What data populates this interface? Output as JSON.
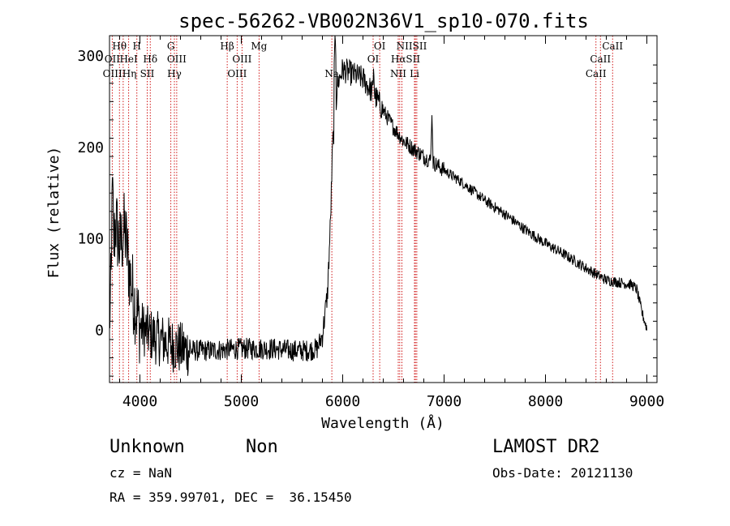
{
  "chart_data": {
    "type": "line",
    "title": "spec-56262-VB002N36V1_sp10-070.fits",
    "xlabel": "Wavelength (Å)",
    "ylabel": "Flux (relative)",
    "xlim": [
      3700,
      9100
    ],
    "ylim": [
      -57,
      322
    ],
    "xticks": [
      {
        "value": 4000,
        "label": "4000"
      },
      {
        "value": 5000,
        "label": "5000"
      },
      {
        "value": 6000,
        "label": "6000"
      },
      {
        "value": 7000,
        "label": "7000"
      },
      {
        "value": 8000,
        "label": "8000"
      },
      {
        "value": 9000,
        "label": "9000"
      }
    ],
    "yticks": [
      {
        "value": 0,
        "label": "0"
      },
      {
        "value": 100,
        "label": "100"
      },
      {
        "value": 200,
        "label": "200"
      },
      {
        "value": 300,
        "label": "300"
      }
    ],
    "spectrum_envelope": [
      [
        3700,
        10
      ],
      [
        3720,
        60
      ],
      [
        3760,
        120
      ],
      [
        3800,
        90
      ],
      [
        3850,
        110
      ],
      [
        3900,
        60
      ],
      [
        3950,
        30
      ],
      [
        4000,
        5
      ],
      [
        4100,
        -5
      ],
      [
        4200,
        -10
      ],
      [
        4300,
        -15
      ],
      [
        4400,
        -20
      ],
      [
        4500,
        -22
      ],
      [
        4700,
        -22
      ],
      [
        5000,
        -20
      ],
      [
        5300,
        -20
      ],
      [
        5500,
        -22
      ],
      [
        5650,
        -22
      ],
      [
        5750,
        -20
      ],
      [
        5800,
        -5
      ],
      [
        5850,
        40
      ],
      [
        5880,
        120
      ],
      [
        5900,
        200
      ],
      [
        5950,
        270
      ],
      [
        6000,
        285
      ],
      [
        6100,
        280
      ],
      [
        6200,
        275
      ],
      [
        6280,
        262
      ],
      [
        6300,
        260
      ],
      [
        6400,
        240
      ],
      [
        6500,
        222
      ],
      [
        6600,
        207
      ],
      [
        6700,
        198
      ],
      [
        6800,
        190
      ],
      [
        6900,
        183
      ],
      [
        7000,
        175
      ],
      [
        7200,
        160
      ],
      [
        7400,
        142
      ],
      [
        7600,
        127
      ],
      [
        7800,
        110
      ],
      [
        8000,
        95
      ],
      [
        8200,
        82
      ],
      [
        8400,
        68
      ],
      [
        8600,
        55
      ],
      [
        8750,
        52
      ],
      [
        8850,
        50
      ],
      [
        8900,
        45
      ],
      [
        8950,
        20
      ],
      [
        9000,
        2
      ]
    ],
    "spectrum_spikes": [
      [
        6880,
        235
      ],
      [
        6305,
        290
      ],
      [
        5925,
        328
      ],
      [
        3730,
        175
      ]
    ],
    "lines": [
      {
        "label": "Hθ",
        "wavelength": 3798,
        "row": 0
      },
      {
        "label": "H",
        "wavelength": 3970,
        "row": 0
      },
      {
        "label": "G",
        "wavelength": 4305,
        "row": 0
      },
      {
        "label": "Hβ",
        "wavelength": 4861,
        "row": 0
      },
      {
        "label": "Mg",
        "wavelength": 5175,
        "row": 0
      },
      {
        "label": "OI",
        "wavelength": 6365,
        "row": 0
      },
      {
        "label": "NIISII",
        "wavelength": 6680,
        "row": 0
      },
      {
        "label": "CaII",
        "wavelength": 8662,
        "row": 0
      },
      {
        "label": "OII",
        "wavelength": 3727,
        "row": 1
      },
      {
        "label": "HeI",
        "wavelength": 3889,
        "row": 1
      },
      {
        "label": "Hδ",
        "wavelength": 4102,
        "row": 1
      },
      {
        "label": "OIII",
        "wavelength": 4363,
        "row": 1
      },
      {
        "label": "OIII",
        "wavelength": 5007,
        "row": 1
      },
      {
        "label": "OI",
        "wavelength": 6300,
        "row": 1
      },
      {
        "label": "HαSII",
        "wavelength": 6620,
        "row": 1
      },
      {
        "label": "CaII",
        "wavelength": 8542,
        "row": 1
      },
      {
        "label": "OIIIHη",
        "wavelength": 3800,
        "row": 2
      },
      {
        "label": "SII",
        "wavelength": 4072,
        "row": 2
      },
      {
        "label": "Hγ",
        "wavelength": 4340,
        "row": 2
      },
      {
        "label": "OIII",
        "wavelength": 4959,
        "row": 2
      },
      {
        "label": "Na",
        "wavelength": 5893,
        "row": 2
      },
      {
        "label": "NII",
        "wavelength": 6548,
        "row": 2
      },
      {
        "label": "Li",
        "wavelength": 6708,
        "row": 2
      },
      {
        "label": "CaII",
        "wavelength": 8498,
        "row": 2
      }
    ],
    "line_markers": [
      3727,
      3798,
      3835,
      3889,
      3970,
      4072,
      4102,
      4305,
      4340,
      4363,
      4861,
      4959,
      5007,
      5175,
      5893,
      6300,
      6365,
      6548,
      6563,
      6584,
      6708,
      6717,
      6731,
      8498,
      8542,
      8662
    ],
    "colors": {
      "spectrum": "#000000",
      "markers": "#cc0000",
      "axes": "#000000"
    }
  },
  "footer": {
    "class_label": "Unknown",
    "subclass_label": "Non",
    "survey_label": "LAMOST DR2",
    "cz_text": "cz = NaN",
    "obsdate_text": "Obs-Date: 20121130",
    "radec_text": "RA = 359.99701, DEC =  36.15450"
  }
}
